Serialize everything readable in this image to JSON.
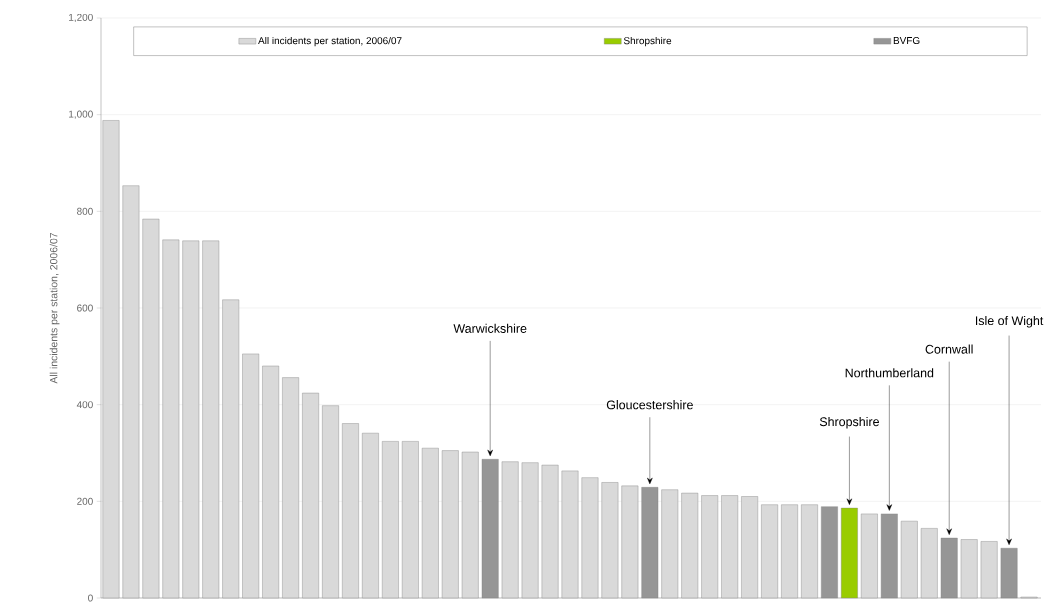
{
  "chart_data": {
    "type": "bar",
    "ylabel": "All incidents per station, 2006/07",
    "categories": [
      null,
      null,
      null,
      null,
      null,
      null,
      null,
      null,
      null,
      null,
      null,
      null,
      null,
      null,
      null,
      null,
      null,
      null,
      null,
      null,
      null,
      null,
      null,
      null,
      null,
      null,
      null,
      null,
      null,
      null,
      null,
      null,
      null,
      null,
      null,
      null,
      null,
      null,
      null,
      null,
      null,
      null,
      null,
      null,
      null,
      null,
      null
    ],
    "series": [
      {
        "name": "All incidents per station, 2006/07",
        "color": "#d9d9d9",
        "values": [
          988,
          853,
          784,
          741,
          739,
          739,
          617,
          505,
          480,
          456,
          424,
          398,
          361,
          341,
          324,
          324,
          310,
          305,
          302,
          null,
          282,
          280,
          275,
          263,
          249,
          239,
          232,
          null,
          224,
          217,
          212,
          212,
          210,
          193,
          193,
          193,
          null,
          null,
          174,
          null,
          159,
          144,
          null,
          121,
          117,
          null,
          2
        ]
      },
      {
        "name": "Shropshire",
        "color": "#99cc00",
        "values": [
          null,
          null,
          null,
          null,
          null,
          null,
          null,
          null,
          null,
          null,
          null,
          null,
          null,
          null,
          null,
          null,
          null,
          null,
          null,
          null,
          null,
          null,
          null,
          null,
          null,
          null,
          null,
          null,
          null,
          null,
          null,
          null,
          null,
          null,
          null,
          null,
          null,
          186,
          null,
          null,
          null,
          null,
          null,
          null,
          null,
          null,
          null
        ]
      },
      {
        "name": "BVFG",
        "color": "#969696",
        "values": [
          null,
          null,
          null,
          null,
          null,
          null,
          null,
          null,
          null,
          null,
          null,
          null,
          null,
          null,
          null,
          null,
          null,
          null,
          null,
          287,
          null,
          null,
          null,
          null,
          null,
          null,
          null,
          229,
          null,
          null,
          null,
          null,
          null,
          null,
          null,
          null,
          189,
          null,
          null,
          174,
          null,
          null,
          124,
          null,
          null,
          103,
          null
        ]
      }
    ],
    "ylim": [
      0,
      1200
    ],
    "yticks": [
      0,
      200,
      400,
      600,
      800,
      {
        "value": 1000,
        "label": "1,000"
      },
      {
        "value": 1200,
        "label": "1,200"
      }
    ],
    "grid": "y",
    "legend": "top",
    "tick_labels": "y",
    "annotations": [
      {
        "text": "Warwickshire",
        "y": 287
      },
      {
        "text": "Gloucestershire",
        "y": 229
      },
      {
        "text": "Shropshire",
        "y": 186
      },
      {
        "text": "Northumberland",
        "y": 174
      },
      {
        "text": "Cornwall",
        "y": 124
      },
      {
        "text": "Isle of Wight",
        "y": 103
      }
    ]
  }
}
